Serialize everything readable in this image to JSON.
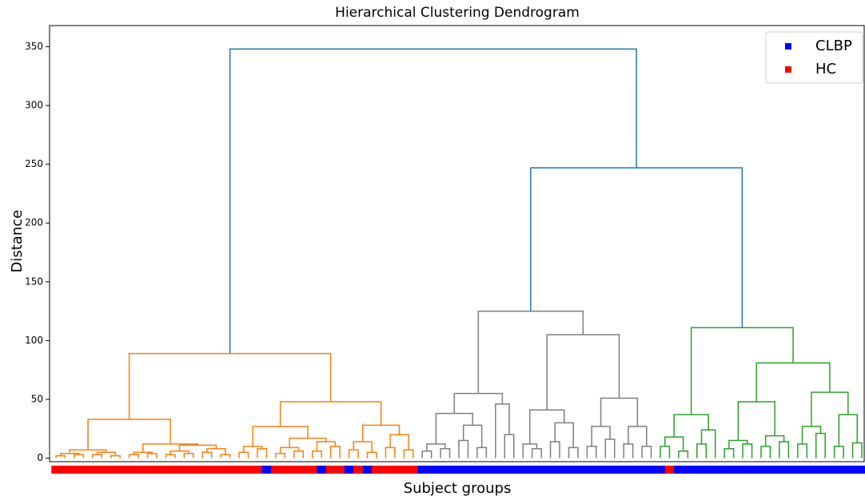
{
  "chart_data": {
    "type": "dendrogram",
    "title": "Hierarchical Clustering Dendrogram",
    "x_label": "Subject groups",
    "y_label": "Distance",
    "ylim": [
      -3,
      368
    ],
    "yticks": [
      0,
      50,
      100,
      150,
      200,
      250,
      300,
      350
    ],
    "legend": "upper right",
    "series": [
      {
        "name": "CLBP",
        "color": "#0000ff"
      },
      {
        "name": "HC",
        "color": "#ff0000"
      }
    ],
    "tree": [
      348,
      [
        89,
        [
          33,
          [
            7,
            [
              4,
              [
                2,
                "HC",
                "HC"
              ],
              [
                3,
                "HC",
                "HC"
              ]
            ],
            [
              5,
              [
                3,
                "HC",
                "HC"
              ],
              [
                2,
                "HC",
                "HC"
              ]
            ]
          ],
          [
            12,
            [
              5,
              [
                3,
                "HC",
                "HC"
              ],
              [
                4,
                "HC",
                "HC"
              ]
            ],
            [
              11,
              [
                6,
                [
                  3,
                  "HC",
                  "HC"
                ],
                [
                  4,
                  "HC",
                  "HC"
                ]
              ],
              [
                8,
                [
                  5,
                  "HC",
                  "HC"
                ],
                [
                  3,
                  "HC",
                  "HC"
                ]
              ]
            ]
          ]
        ],
        [
          48,
          [
            27,
            [
              10,
              [
                5,
                "HC",
                "HC"
              ],
              [
                8,
                "HC",
                "CLBP"
              ]
            ],
            [
              17,
              [
                9,
                [
                  4,
                  "HC",
                  "HC"
                ],
                [
                  6,
                  "HC",
                  "HC"
                ]
              ],
              [
                14,
                [
                  6,
                  "HC",
                  "CLBP"
                ],
                [
                  10,
                  "HC",
                  "HC"
                ]
              ]
            ]
          ],
          [
            28,
            [
              14,
              [
                7,
                "CLBP",
                "HC"
              ],
              [
                5,
                "CLBP",
                "HC"
              ]
            ],
            [
              20,
              [
                9,
                "HC",
                "HC"
              ],
              [
                7,
                "HC",
                "HC"
              ]
            ]
          ]
        ],
        "#ff7f0e"
      ],
      [
        247,
        [
          125,
          [
            55,
            [
              38,
              [
                12,
                [
                  6,
                  "CLBP",
                  "CLBP"
                ],
                [
                  8,
                  "CLBP",
                  "CLBP"
                ]
              ],
              [
                28,
                [
                  15,
                  "CLBP",
                  "CLBP"
                ],
                [
                  9,
                  "CLBP",
                  "CLBP"
                ]
              ]
            ],
            [
              46,
              "CLBP",
              [
                20,
                "CLBP",
                "CLBP"
              ]
            ]
          ],
          [
            105,
            [
              41,
              [
                12,
                "CLBP",
                [
                  8,
                  "CLBP",
                  "CLBP"
                ]
              ],
              [
                30,
                [
                  14,
                  "CLBP",
                  "CLBP"
                ],
                [
                  9,
                  "CLBP",
                  "CLBP"
                ]
              ]
            ],
            [
              51,
              [
                27,
                [
                  10,
                  "CLBP",
                  "CLBP"
                ],
                [
                  16,
                  "CLBP",
                  "CLBP"
                ]
              ],
              [
                27,
                [
                  12,
                  "CLBP",
                  "CLBP"
                ],
                [
                  10,
                  "CLBP",
                  "CLBP"
                ]
              ]
            ]
          ],
          "#7f7f7f"
        ],
        [
          111,
          [
            37,
            [
              18,
              [
                10,
                "CLBP",
                "HC"
              ],
              [
                6,
                "CLBP",
                "CLBP"
              ]
            ],
            [
              24,
              [
                12,
                "CLBP",
                "CLBP"
              ],
              "CLBP"
            ]
          ],
          [
            81,
            [
              48,
              [
                15,
                [
                  8,
                  "CLBP",
                  "CLBP"
                ],
                [
                  12,
                  "CLBP",
                  "CLBP"
                ]
              ],
              [
                19,
                [
                  10,
                  "CLBP",
                  "CLBP"
                ],
                [
                  14,
                  "CLBP",
                  "CLBP"
                ]
              ]
            ],
            [
              56,
              [
                27,
                [
                  12,
                  "CLBP",
                  "CLBP"
                ],
                [
                  21,
                  "CLBP",
                  "CLBP"
                ]
              ],
              [
                37,
                [
                  10,
                  "CLBP",
                  "CLBP"
                ],
                [
                  13,
                  "CLBP",
                  "CLBP"
                ]
              ]
            ]
          ],
          "#2ca02c"
        ]
      ],
      "#1f77b4"
    ]
  }
}
